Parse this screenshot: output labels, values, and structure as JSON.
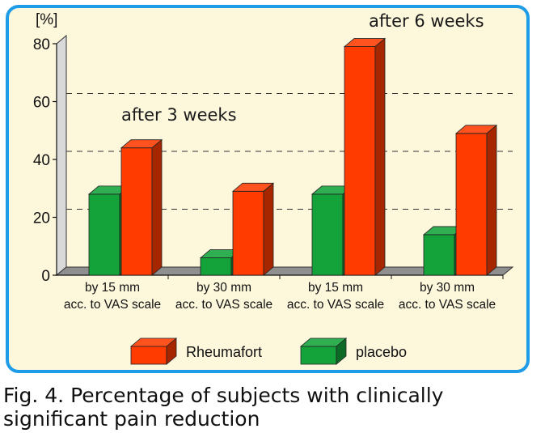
{
  "colors": {
    "frame_border": "#1f9ce8",
    "background": "#fdf7dc",
    "rheumafort": "#ff3b00",
    "placebo": "#14a33a"
  },
  "caption": "Fig. 4. Percentage of subjects with clinically significant pain reduction",
  "chart_data": {
    "type": "bar",
    "style": "3d-grouped",
    "ylabel": "[%]",
    "ylim": [
      0,
      80
    ],
    "yticks": [
      0,
      20,
      40,
      60,
      80
    ],
    "grid": "dashed horizontal",
    "legend_position": "bottom",
    "categories": [
      [
        "by 15 mm",
        "acc. to VAS scale"
      ],
      [
        "by 30 mm",
        "acc. to VAS scale"
      ],
      [
        "by 15 mm",
        "acc. to VAS scale"
      ],
      [
        "by 30 mm",
        "acc. to VAS scale"
      ]
    ],
    "series": [
      {
        "name": "placebo",
        "color": "#14a33a",
        "values": [
          28,
          6,
          28,
          14
        ]
      },
      {
        "name": "Rheumafort",
        "color": "#ff3b00",
        "values": [
          44,
          29,
          79,
          49
        ]
      }
    ],
    "legend_order": [
      "Rheumafort",
      "placebo"
    ],
    "annotations": [
      "after 3 weeks",
      "after 6 weeks"
    ]
  }
}
